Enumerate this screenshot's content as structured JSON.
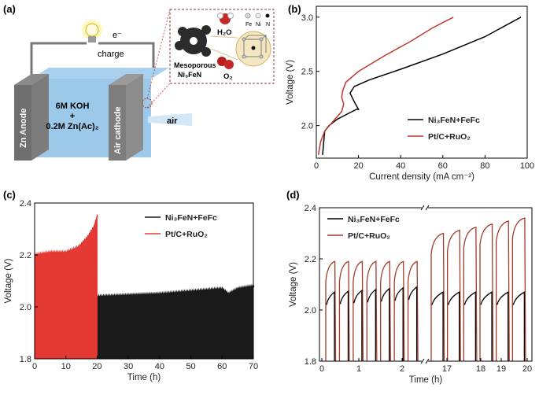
{
  "panel_a": {
    "label": "(a)",
    "electron": "e⁻",
    "charge": "charge",
    "electrolyte_line1": "6M KOH",
    "electrolyte_line2": "+",
    "electrolyte_line3": "0.2M Zn(Ac)₂",
    "anode": "Zn Anode",
    "cathode": "Air cathode",
    "air": "air",
    "catalyst_line1": "Mesoporous",
    "catalyst_line2": "Ni₃FeN",
    "h2o": "H₂O",
    "o2": "O₂",
    "atoms": [
      "Fe",
      "Ni",
      "N"
    ]
  },
  "chart_data": [
    {
      "panel": "(b)",
      "type": "line",
      "xlabel": "Current density (mA cm⁻²)",
      "ylabel": "Voltage (V)",
      "xlim": [
        0,
        100
      ],
      "ylim": [
        1.7,
        3.1
      ],
      "xticks": [
        0,
        20,
        40,
        60,
        80,
        100
      ],
      "yticks": [
        2.0,
        2.5,
        3.0
      ],
      "legend": "inside-lower-right",
      "series": [
        {
          "name": "Ni₃FeN+FeFc",
          "color": "#000000",
          "points": [
            [
              3,
              1.73
            ],
            [
              3.5,
              1.85
            ],
            [
              4,
              1.95
            ],
            [
              6,
              2.0
            ],
            [
              10,
              2.06
            ],
            [
              15,
              2.11
            ],
            [
              19,
              2.15
            ],
            [
              20,
              2.15
            ],
            [
              18,
              2.22
            ],
            [
              16,
              2.3
            ],
            [
              18,
              2.36
            ],
            [
              25,
              2.42
            ],
            [
              40,
              2.52
            ],
            [
              60,
              2.66
            ],
            [
              80,
              2.82
            ],
            [
              97,
              3.0
            ]
          ]
        },
        {
          "name": "Pt/C+RuO₂",
          "color": "#c0392b",
          "points": [
            [
              1,
              1.73
            ],
            [
              2,
              1.85
            ],
            [
              4,
              1.95
            ],
            [
              8,
              2.04
            ],
            [
              12,
              2.13
            ],
            [
              13,
              2.2
            ],
            [
              12,
              2.26
            ],
            [
              12.5,
              2.32
            ],
            [
              14,
              2.4
            ],
            [
              20,
              2.5
            ],
            [
              32,
              2.64
            ],
            [
              45,
              2.78
            ],
            [
              55,
              2.9
            ],
            [
              65,
              3.0
            ]
          ]
        }
      ]
    },
    {
      "panel": "(c)",
      "type": "area",
      "xlabel": "Time (h)",
      "ylabel": "Voltage (V)",
      "xlim": [
        0,
        70
      ],
      "ylim": [
        1.8,
        2.4
      ],
      "xticks": [
        0,
        10,
        20,
        30,
        40,
        50,
        60,
        70
      ],
      "yticks": [
        1.8,
        2.0,
        2.2,
        2.4
      ],
      "legend": "top-right",
      "series": [
        {
          "name": "Ni₃FeN+FeFc",
          "color": "#1a1a1a",
          "points": [
            [
              20,
              2.04
            ],
            [
              30,
              2.045
            ],
            [
              40,
              2.05
            ],
            [
              50,
              2.06
            ],
            [
              60,
              2.07
            ],
            [
              62,
              2.05
            ],
            [
              65,
              2.07
            ],
            [
              70,
              2.08
            ]
          ]
        },
        {
          "name": "Pt/C+RuO₂",
          "color": "#e53935",
          "points": [
            [
              0,
              2.2
            ],
            [
              5,
              2.21
            ],
            [
              10,
              2.21
            ],
            [
              14,
              2.23
            ],
            [
              17,
              2.27
            ],
            [
              19,
              2.31
            ],
            [
              20,
              2.35
            ]
          ]
        }
      ]
    },
    {
      "panel": "(d)",
      "type": "line",
      "xlabel": "Time (h)",
      "ylabel": "Voltage (V)",
      "xlim": [
        0,
        20
      ],
      "ylim": [
        1.8,
        2.4
      ],
      "xtick_labels": [
        "0",
        "1",
        "2",
        "17",
        "18",
        "19",
        "20"
      ],
      "yticks": [
        1.8,
        2.0,
        2.2,
        2.4
      ],
      "axis_break": true,
      "legend": "top-left",
      "cycles_part1": {
        "period": 0.33,
        "count": 7,
        "pt_peak": 2.19,
        "ni_plateau": [
          2.05,
          2.07
        ]
      },
      "cycles_part2": {
        "period": 0.5,
        "count": 6,
        "pt_peak": [
          2.3,
          2.36
        ],
        "ni_plateau": [
          2.05,
          2.05
        ]
      },
      "series": [
        {
          "name": "Ni₃FeN+FeFc",
          "color": "#000000"
        },
        {
          "name": "Pt/C+RuO₂",
          "color": "#a33a2a"
        }
      ]
    }
  ]
}
